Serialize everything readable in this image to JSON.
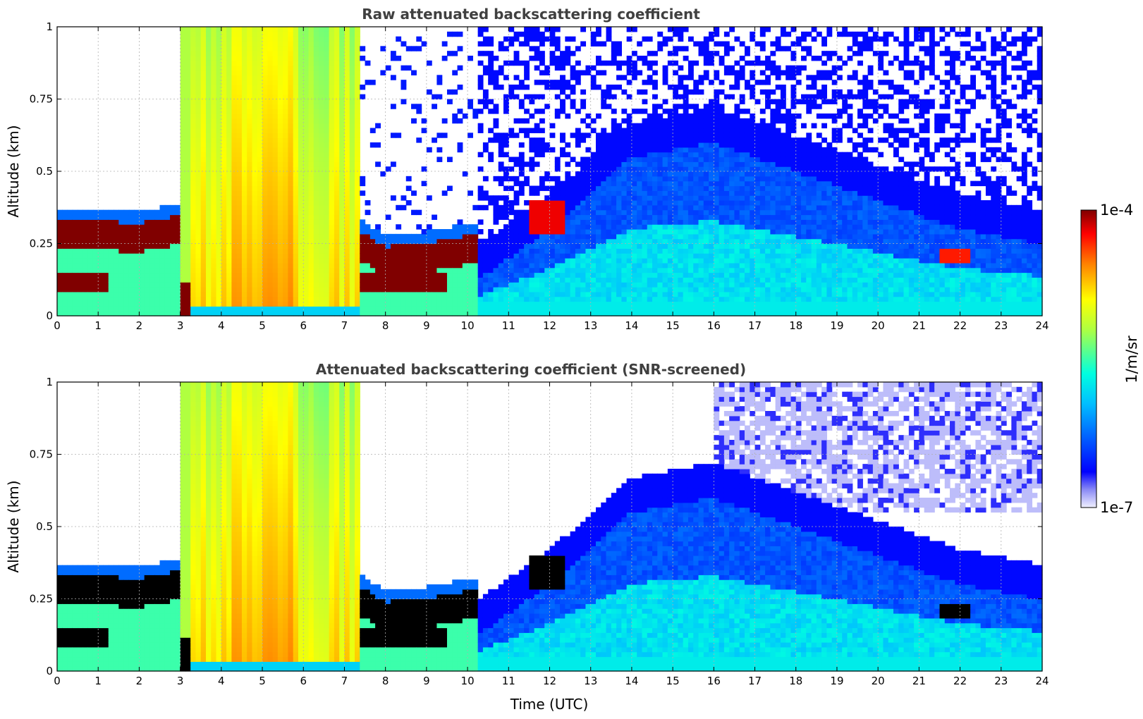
{
  "chart_data": [
    {
      "type": "heatmap",
      "title": "Raw attenuated backscattering coefficient",
      "xlabel": "",
      "ylabel": "Altitude (km)",
      "xlim": [
        0,
        24
      ],
      "ylim": [
        0,
        1
      ],
      "x_ticks": [
        0,
        1,
        2,
        3,
        4,
        5,
        6,
        7,
        8,
        9,
        10,
        11,
        12,
        13,
        14,
        15,
        16,
        17,
        18,
        19,
        20,
        21,
        22,
        23,
        24
      ],
      "y_ticks": [
        0,
        0.25,
        0.5,
        0.75,
        1
      ],
      "y_tick_labels": [
        "0",
        "0.25",
        "0.5",
        "0.75",
        "1"
      ],
      "grid": true,
      "screened": false
    },
    {
      "type": "heatmap",
      "title": "Attenuated backscattering coefficient (SNR-screened)",
      "xlabel": "Time (UTC)",
      "ylabel": "Altitude (km)",
      "xlim": [
        0,
        24
      ],
      "ylim": [
        0,
        1
      ],
      "x_ticks": [
        0,
        1,
        2,
        3,
        4,
        5,
        6,
        7,
        8,
        9,
        10,
        11,
        12,
        13,
        14,
        15,
        16,
        17,
        18,
        19,
        20,
        21,
        22,
        23,
        24
      ],
      "y_ticks": [
        0,
        0.25,
        0.5,
        0.75,
        1
      ],
      "y_tick_labels": [
        "0",
        "0.25",
        "0.5",
        "0.75",
        "1"
      ],
      "grid": true,
      "screened": true
    }
  ],
  "colorbar": {
    "label": "1/m/sr",
    "max_label": "1e-4",
    "min_label": "1e-7",
    "colormap": "jet",
    "scale": "log"
  },
  "colors": {
    "title": "#404040",
    "saturated": "#800000",
    "screened_saturated": "#000000",
    "background": "#ffffff"
  }
}
